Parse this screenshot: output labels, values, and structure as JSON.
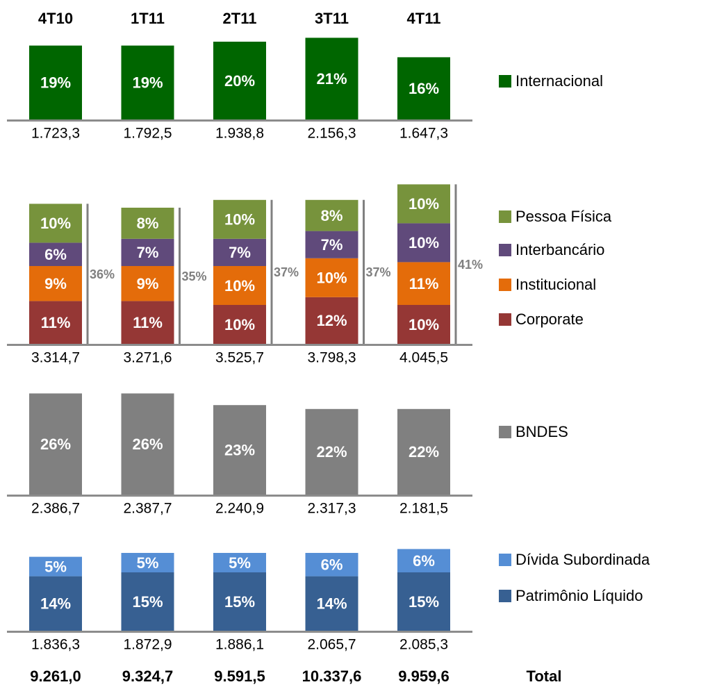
{
  "chart_data": {
    "type": "bar",
    "stacked": true,
    "categories": [
      "4T10",
      "1T11",
      "2T11",
      "3T11",
      "4T11"
    ],
    "panels": [
      {
        "series": [
          {
            "name": "Internacional",
            "color": "#006600",
            "values": [
              19,
              19,
              20,
              21,
              16
            ],
            "value_labels": [
              "19%",
              "19%",
              "20%",
              "21%",
              "16%"
            ]
          }
        ],
        "amounts": [
          1723.3,
          1792.5,
          1938.8,
          2156.3,
          1647.3
        ],
        "amount_labels": [
          "1.723,3",
          "1.792,5",
          "1.938,8",
          "2.156,3",
          "1.647,3"
        ]
      },
      {
        "series": [
          {
            "name": "Corporate",
            "color": "#953735",
            "values": [
              11,
              11,
              10,
              12,
              10
            ],
            "value_labels": [
              "11%",
              "11%",
              "10%",
              "12%",
              "10%"
            ]
          },
          {
            "name": "Institucional",
            "color": "#e46c0a",
            "values": [
              9,
              9,
              10,
              10,
              11
            ],
            "value_labels": [
              "9%",
              "9%",
              "10%",
              "10%",
              "11%"
            ]
          },
          {
            "name": "Interbancário",
            "color": "#604a7b",
            "values": [
              6,
              7,
              7,
              7,
              10
            ],
            "value_labels": [
              "6%",
              "7%",
              "7%",
              "7%",
              "10%"
            ]
          },
          {
            "name": "Pessoa Física",
            "color": "#77933c",
            "values": [
              10,
              8,
              10,
              8,
              10
            ],
            "value_labels": [
              "10%",
              "8%",
              "10%",
              "8%",
              "10%"
            ]
          }
        ],
        "brackets": {
          "values": [
            36,
            35,
            37,
            37,
            41
          ],
          "value_labels": [
            "36%",
            "35%",
            "37%",
            "37%",
            "41%"
          ]
        },
        "amounts": [
          3314.7,
          3271.6,
          3525.7,
          3798.3,
          4045.5
        ],
        "amount_labels": [
          "3.314,7",
          "3.271,6",
          "3.525,7",
          "3.798,3",
          "4.045,5"
        ]
      },
      {
        "series": [
          {
            "name": "BNDES",
            "color": "#808080",
            "values": [
              26,
              26,
              23,
              22,
              22
            ],
            "value_labels": [
              "26%",
              "26%",
              "23%",
              "22%",
              "22%"
            ]
          }
        ],
        "amounts": [
          2386.7,
          2387.7,
          2240.9,
          2317.3,
          2181.5
        ],
        "amount_labels": [
          "2.386,7",
          "2.387,7",
          "2.240,9",
          "2.317,3",
          "2.181,5"
        ]
      },
      {
        "series": [
          {
            "name": "Patrimônio Líquido",
            "color": "#376092",
            "values": [
              14,
              15,
              15,
              14,
              15
            ],
            "value_labels": [
              "14%",
              "15%",
              "15%",
              "14%",
              "15%"
            ]
          },
          {
            "name": "Dívida Subordinada",
            "color": "#558ed5",
            "values": [
              5,
              5,
              5,
              6,
              6
            ],
            "value_labels": [
              "5%",
              "5%",
              "5%",
              "6%",
              "6%"
            ]
          }
        ],
        "amounts": [
          1836.3,
          1872.9,
          1886.1,
          2065.7,
          2085.3
        ],
        "amount_labels": [
          "1.836,3",
          "1.872,9",
          "1.886,1",
          "2.065,7",
          "2.085,3"
        ]
      }
    ],
    "total": {
      "label": "Total",
      "values": [
        9261.0,
        9324.7,
        9591.5,
        10337.6,
        9959.6
      ],
      "value_labels": [
        "9.261,0",
        "9.324,7",
        "9.591,5",
        "10.337,6",
        "9.959,6"
      ]
    }
  }
}
